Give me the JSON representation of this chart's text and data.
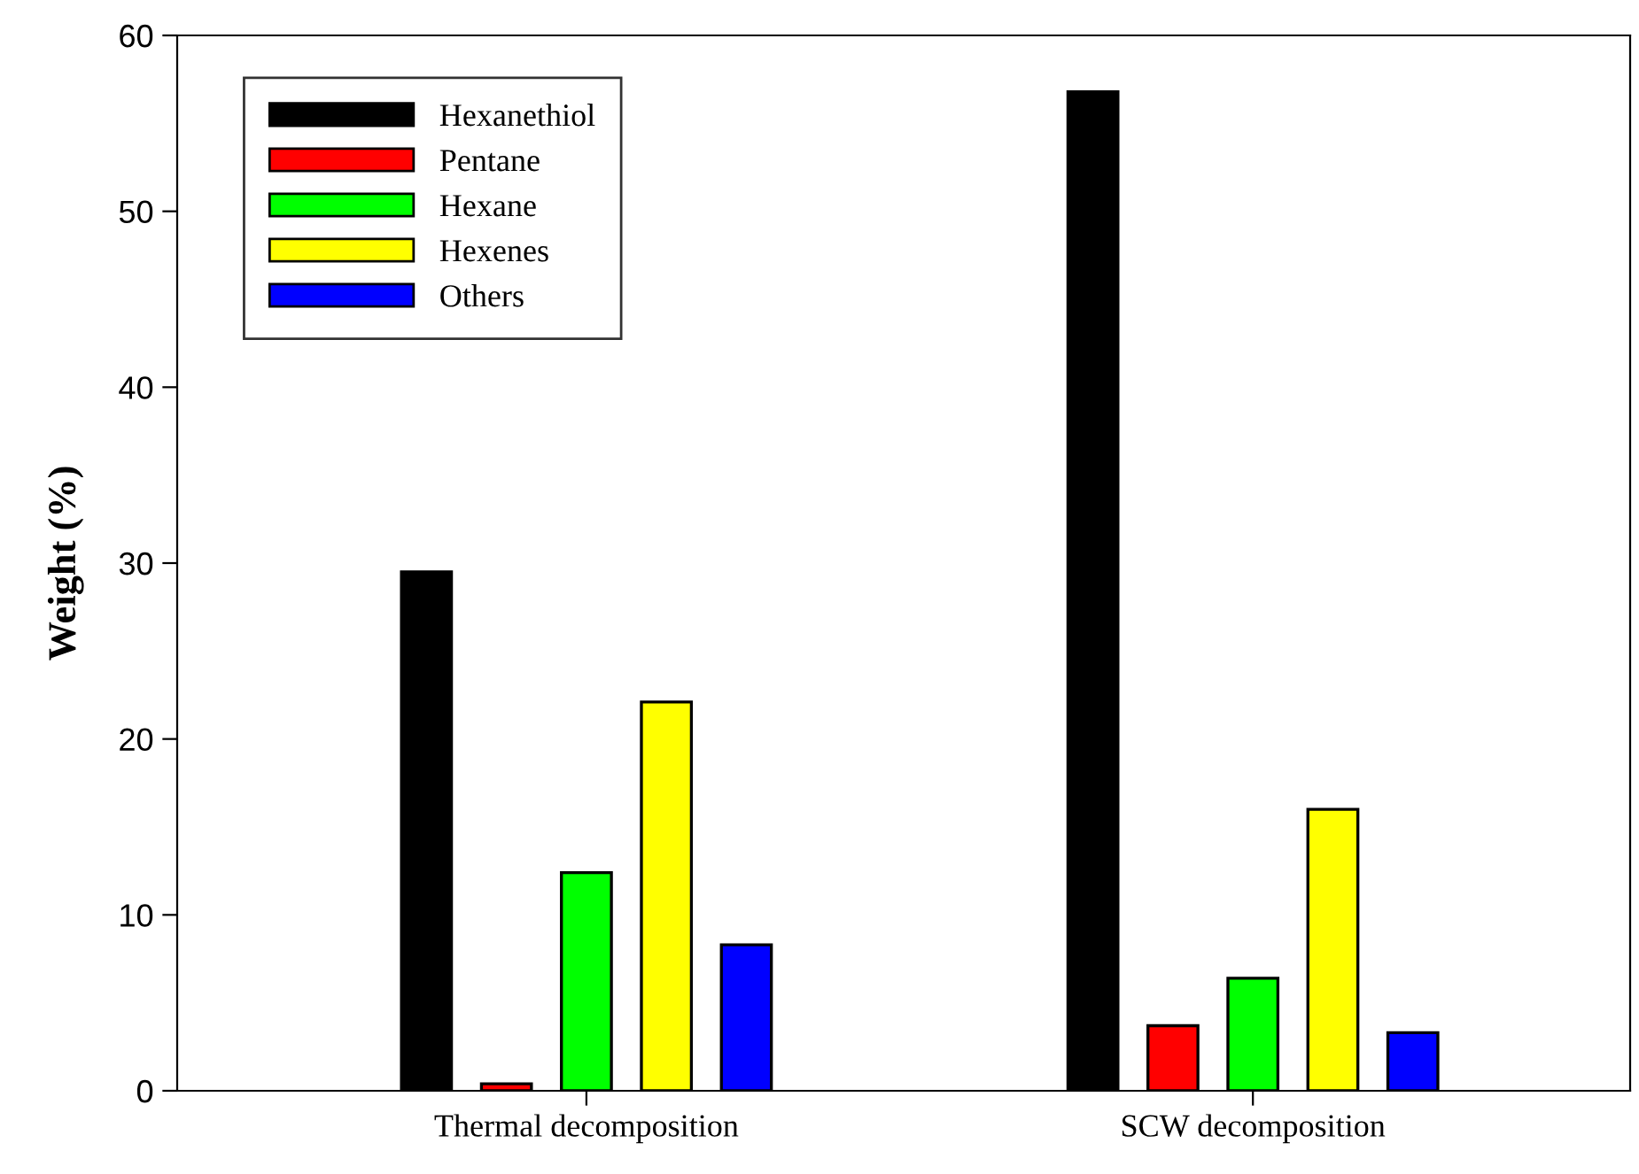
{
  "chart_data": {
    "type": "bar",
    "ylabel": "Weight (%)",
    "categories": [
      "Thermal decomposition",
      "SCW decomposition"
    ],
    "series": [
      {
        "name": "Hexanethiol",
        "color": "#000000",
        "values": [
          29.5,
          56.8
        ]
      },
      {
        "name": "Pentane",
        "color": "#ff0000",
        "values": [
          0.4,
          3.7
        ]
      },
      {
        "name": "Hexane",
        "color": "#00ff00",
        "values": [
          12.4,
          6.4
        ]
      },
      {
        "name": "Hexenes",
        "color": "#ffff00",
        "values": [
          22.1,
          16.0
        ]
      },
      {
        "name": "Others",
        "color": "#0000ff",
        "values": [
          8.3,
          3.3
        ]
      }
    ],
    "ylim": [
      0,
      60
    ],
    "yticks": [
      0,
      10,
      20,
      30,
      40,
      50,
      60
    ],
    "grid": false,
    "legend": "top left"
  }
}
